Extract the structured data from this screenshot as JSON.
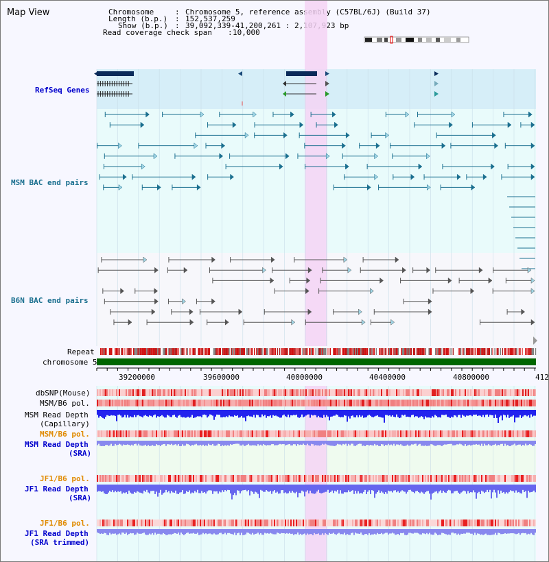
{
  "window": {
    "title": "Map View"
  },
  "header": {
    "chromosome_label": "Chromosome",
    "chromosome_value": "Chromosome 5, reference assembly (C57BL/6J) (Build 37)",
    "length_label": "Length (b.p.)",
    "length_value": "152,537,259",
    "show_label": "Show (b.p.)",
    "show_value": "39,092,339-41,200,261 : 2,107,923 bp",
    "coverage_label": "Read coverage check span",
    "coverage_value": "10,000"
  },
  "tracks": {
    "refseq": "RefSeq Genes",
    "msm_bac": "MSM BAC end pairs",
    "b6n_bac": "B6N BAC end pairs",
    "repeat": "Repeat",
    "chromosome": "chromosome 5",
    "dbsnp": "dbSNP(Mouse)",
    "msm_b6_pol_1": "MSM/B6 pol.",
    "msm_depth_cap_1": "MSM Read Depth",
    "msm_depth_cap_2": "(Capillary)",
    "msm_b6_pol_2": "MSM/B6 pol.",
    "msm_depth_sra_1": "MSM Read Depth",
    "msm_depth_sra_2": "(SRA)",
    "jf1_b6_pol_1": "JF1/B6 pol.",
    "jf1_depth_sra_1": "JF1 Read Depth",
    "jf1_depth_sra_2": "(SRA)",
    "jf1_b6_pol_2": "JF1/B6 pol.",
    "jf1_depth_trim_1": "JF1 Read Depth",
    "jf1_depth_trim_2": "(SRA trimmed)"
  },
  "ruler": {
    "ticks": [
      "39200000",
      "39600000",
      "40000000",
      "40400000",
      "40800000",
      "412"
    ]
  },
  "colors": {
    "refseq_label": "#0000cc",
    "msm_label": "#1a6f8f",
    "b6n_label": "#1a6f8f",
    "orange_label": "#e08a00",
    "blue_label": "#0000cc",
    "highlight": "#f4d4f4",
    "chromosome_bar": "#006600"
  }
}
